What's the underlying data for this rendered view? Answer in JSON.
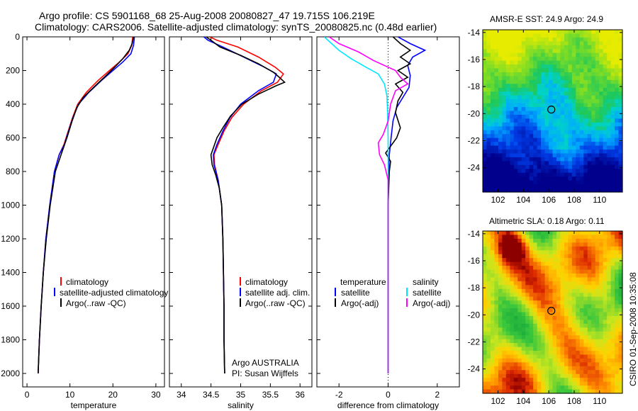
{
  "title": {
    "line1": "Argo profile: CS 5901168_68 25-Aug-2008 20080827_47 19.715S 106.219E",
    "line2": "Climatology: CARS2006. Satellite-adjusted climatology: synTS_20080825.nc (0.48d earlier)"
  },
  "colors": {
    "clim": "#ff0000",
    "sat": "#0000ff",
    "argo": "#000000",
    "sat_diff_s": "#00e6ff",
    "argo_adj_s": "#ff00ff"
  },
  "chart_data": [
    {
      "type": "line",
      "name": "temperature-profile",
      "xlabel": "temperature",
      "ylabel": "",
      "xlim": [
        -1,
        32
      ],
      "ylim": [
        2080,
        0
      ],
      "inverted_y": true,
      "xticks": [
        0,
        10,
        20,
        30
      ],
      "yticks": [
        0,
        200,
        400,
        600,
        800,
        1000,
        1200,
        1400,
        1600,
        1800,
        2000
      ],
      "legend": [
        "climatology",
        "satellite-adjusted climatology",
        "Argo(..raw -QC)"
      ],
      "legend_position": "lower-middle",
      "series": [
        {
          "name": "climatology",
          "color": "clim",
          "points": [
            [
              24.6,
              0
            ],
            [
              24.4,
              50
            ],
            [
              23.5,
              100
            ],
            [
              21.5,
              150
            ],
            [
              19.2,
              200
            ],
            [
              16.5,
              260
            ],
            [
              13.8,
              330
            ],
            [
              11.8,
              400
            ],
            [
              10.6,
              480
            ],
            [
              9.6,
              560
            ],
            [
              8.6,
              640
            ],
            [
              7.5,
              700
            ],
            [
              6.4,
              800
            ],
            [
              5.3,
              1000
            ],
            [
              4.4,
              1200
            ],
            [
              3.8,
              1400
            ],
            [
              3.3,
              1600
            ],
            [
              2.9,
              1800
            ],
            [
              2.6,
              2000
            ]
          ]
        },
        {
          "name": "satellite-adjusted climatology",
          "color": "sat",
          "points": [
            [
              25.0,
              0
            ],
            [
              24.8,
              50
            ],
            [
              24.2,
              100
            ],
            [
              22.3,
              150
            ],
            [
              20.0,
              200
            ],
            [
              17.3,
              260
            ],
            [
              14.4,
              330
            ],
            [
              12.0,
              400
            ],
            [
              10.7,
              480
            ],
            [
              9.7,
              560
            ],
            [
              8.7,
              640
            ],
            [
              7.5,
              700
            ],
            [
              6.4,
              800
            ],
            [
              5.3,
              1000
            ],
            [
              4.4,
              1200
            ],
            [
              3.8,
              1400
            ],
            [
              3.3,
              1600
            ],
            [
              2.9,
              1800
            ],
            [
              2.6,
              2000
            ]
          ]
        },
        {
          "name": "Argo(..raw -QC)",
          "color": "argo",
          "points": [
            [
              24.8,
              0
            ],
            [
              24.5,
              40
            ],
            [
              23.8,
              80
            ],
            [
              22.3,
              130
            ],
            [
              20.4,
              180
            ],
            [
              18.0,
              240
            ],
            [
              15.5,
              300
            ],
            [
              13.1,
              360
            ],
            [
              11.6,
              420
            ],
            [
              10.5,
              500
            ],
            [
              9.3,
              600
            ],
            [
              8.2,
              680
            ],
            [
              6.6,
              800
            ],
            [
              5.4,
              1000
            ],
            [
              4.5,
              1200
            ],
            [
              3.8,
              1400
            ],
            [
              3.3,
              1600
            ],
            [
              2.9,
              1800
            ],
            [
              2.6,
              2000
            ]
          ]
        }
      ]
    },
    {
      "type": "line",
      "name": "salinity-profile",
      "xlabel": "salinity",
      "ylabel": "",
      "xlim": [
        33.8,
        36.2
      ],
      "ylim": [
        2080,
        0
      ],
      "inverted_y": true,
      "xticks": [
        34,
        34.5,
        35,
        35.5,
        36
      ],
      "legend": [
        "climatology",
        "satellite adj. clim.",
        "Argo(..raw -QC)"
      ],
      "legend_position": "lower-middle",
      "annotation": {
        "line1": "Argo AUSTRALIA",
        "line2": "PI: Susan Wijffels"
      },
      "series": [
        {
          "name": "climatology",
          "color": "clim",
          "points": [
            [
              34.48,
              0
            ],
            [
              34.6,
              20
            ],
            [
              34.95,
              60
            ],
            [
              35.3,
              120
            ],
            [
              35.58,
              180
            ],
            [
              35.72,
              220
            ],
            [
              35.62,
              270
            ],
            [
              35.35,
              320
            ],
            [
              35.05,
              400
            ],
            [
              34.85,
              480
            ],
            [
              34.72,
              560
            ],
            [
              34.62,
              640
            ],
            [
              34.55,
              700
            ],
            [
              34.56,
              760
            ],
            [
              34.62,
              850
            ],
            [
              34.68,
              1000
            ],
            [
              34.7,
              1200
            ],
            [
              34.71,
              1400
            ],
            [
              34.72,
              1600
            ],
            [
              34.72,
              1800
            ],
            [
              34.73,
              2000
            ]
          ]
        },
        {
          "name": "satellite adj. clim.",
          "color": "sat",
          "points": [
            [
              34.38,
              0
            ],
            [
              34.45,
              20
            ],
            [
              34.7,
              60
            ],
            [
              35.05,
              120
            ],
            [
              35.4,
              180
            ],
            [
              35.6,
              220
            ],
            [
              35.55,
              270
            ],
            [
              35.3,
              320
            ],
            [
              35.0,
              400
            ],
            [
              34.82,
              480
            ],
            [
              34.7,
              560
            ],
            [
              34.6,
              640
            ],
            [
              34.54,
              700
            ],
            [
              34.55,
              760
            ],
            [
              34.62,
              850
            ],
            [
              34.68,
              1000
            ],
            [
              34.7,
              1200
            ],
            [
              34.71,
              1400
            ],
            [
              34.72,
              1600
            ],
            [
              34.72,
              1800
            ],
            [
              34.73,
              2000
            ]
          ]
        },
        {
          "name": "Argo(..raw -QC)",
          "color": "argo",
          "points": [
            [
              34.42,
              0
            ],
            [
              34.5,
              20
            ],
            [
              34.65,
              60
            ],
            [
              35.0,
              110
            ],
            [
              35.3,
              160
            ],
            [
              35.55,
              210
            ],
            [
              35.65,
              240
            ],
            [
              35.74,
              270
            ],
            [
              35.6,
              290
            ],
            [
              35.3,
              340
            ],
            [
              35.02,
              400
            ],
            [
              34.83,
              470
            ],
            [
              34.7,
              540
            ],
            [
              34.6,
              600
            ],
            [
              34.54,
              660
            ],
            [
              34.5,
              700
            ],
            [
              34.52,
              760
            ],
            [
              34.58,
              820
            ],
            [
              34.64,
              900
            ],
            [
              34.68,
              1000
            ],
            [
              34.7,
              1200
            ],
            [
              34.71,
              1400
            ],
            [
              34.72,
              1600
            ],
            [
              34.72,
              1800
            ],
            [
              34.73,
              2000
            ]
          ]
        }
      ]
    },
    {
      "type": "line",
      "name": "difference-from-climatology",
      "xlabel": "difference from climatology",
      "ylabel": "",
      "xlim": [
        -2.9,
        2.9
      ],
      "ylim": [
        2080,
        0
      ],
      "inverted_y": true,
      "xticks": [
        -2,
        0,
        2
      ],
      "zero_line": true,
      "legend_left_title": "temperature",
      "legend_left": [
        "satellite",
        "Argo(-adj)"
      ],
      "legend_right_title": "salinity",
      "legend_right": [
        "satellite",
        "Argo(-adj)"
      ],
      "series": [
        {
          "name": "temperature satellite",
          "color": "sat",
          "points": [
            [
              0.4,
              0
            ],
            [
              0.9,
              40
            ],
            [
              1.5,
              80
            ],
            [
              1.0,
              120
            ],
            [
              0.8,
              170
            ],
            [
              0.9,
              230
            ],
            [
              0.85,
              300
            ],
            [
              0.6,
              360
            ],
            [
              0.35,
              420
            ],
            [
              0.2,
              500
            ],
            [
              0.12,
              600
            ],
            [
              0.05,
              700
            ],
            [
              0.02,
              800
            ],
            [
              0.0,
              1000
            ],
            [
              0.0,
              1400
            ],
            [
              0.0,
              2000
            ]
          ]
        },
        {
          "name": "temperature Argo(-adj)",
          "color": "argo",
          "points": [
            [
              0.2,
              0
            ],
            [
              0.5,
              40
            ],
            [
              0.9,
              80
            ],
            [
              0.5,
              120
            ],
            [
              0.9,
              160
            ],
            [
              0.4,
              200
            ],
            [
              0.8,
              240
            ],
            [
              0.3,
              280
            ],
            [
              0.6,
              330
            ],
            [
              0.4,
              380
            ],
            [
              0.3,
              450
            ],
            [
              0.5,
              540
            ],
            [
              0.35,
              600
            ],
            [
              0.1,
              650
            ],
            [
              -0.1,
              690
            ],
            [
              0.1,
              740
            ],
            [
              0.05,
              800
            ],
            [
              0.0,
              1000
            ],
            [
              0.0,
              1400
            ],
            [
              0.0,
              2000
            ]
          ]
        },
        {
          "name": "salinity satellite",
          "color": "sat_diff_s",
          "points": [
            [
              -2.6,
              0
            ],
            [
              -2.3,
              40
            ],
            [
              -2.0,
              80
            ],
            [
              -1.5,
              130
            ],
            [
              -0.9,
              180
            ],
            [
              -0.4,
              220
            ],
            [
              -0.15,
              280
            ],
            [
              -0.05,
              350
            ],
            [
              -0.02,
              450
            ],
            [
              0.0,
              600
            ],
            [
              0.0,
              800
            ],
            [
              0.0,
              1000
            ],
            [
              0.0,
              1400
            ],
            [
              0.0,
              2000
            ]
          ]
        },
        {
          "name": "salinity Argo(-adj)",
          "color": "argo_adj_s",
          "points": [
            [
              -2.4,
              0
            ],
            [
              -2.0,
              40
            ],
            [
              -1.2,
              90
            ],
            [
              -0.6,
              140
            ],
            [
              0.3,
              200
            ],
            [
              0.5,
              240
            ],
            [
              0.8,
              280
            ],
            [
              0.3,
              320
            ],
            [
              0.1,
              400
            ],
            [
              0.0,
              500
            ],
            [
              -0.2,
              580
            ],
            [
              -0.4,
              630
            ],
            [
              -0.35,
              700
            ],
            [
              -0.15,
              760
            ],
            [
              0.0,
              850
            ],
            [
              0.0,
              1000
            ],
            [
              0.0,
              1400
            ],
            [
              0.0,
              2000
            ]
          ]
        }
      ]
    },
    {
      "type": "heatmap",
      "name": "amsre-sst-map",
      "title": "AMSR-E SST: 24.9 Argo: 24.9",
      "xlim": [
        100.8,
        111.8
      ],
      "ylim": [
        -25.8,
        -13.8
      ],
      "xticks": [
        102,
        104,
        106,
        108,
        110
      ],
      "yticks": [
        -14,
        -16,
        -18,
        -20,
        -22,
        -24
      ],
      "marker": {
        "lon": 106.2,
        "lat": -19.7
      },
      "field": "sst"
    },
    {
      "type": "heatmap",
      "name": "altimetric-sla-map",
      "title": "Altimetric SLA: 0.18 Argo: 0.11",
      "xlim": [
        100.8,
        111.8
      ],
      "ylim": [
        -25.8,
        -13.8
      ],
      "xticks": [
        102,
        104,
        106,
        108,
        110
      ],
      "yticks": [
        -14,
        -16,
        -18,
        -20,
        -22,
        -24
      ],
      "marker": {
        "lon": 106.2,
        "lat": -19.7
      },
      "field": "sla"
    }
  ],
  "footer_vertical": "CSIRO 01-Sep-2008 10:35:08"
}
